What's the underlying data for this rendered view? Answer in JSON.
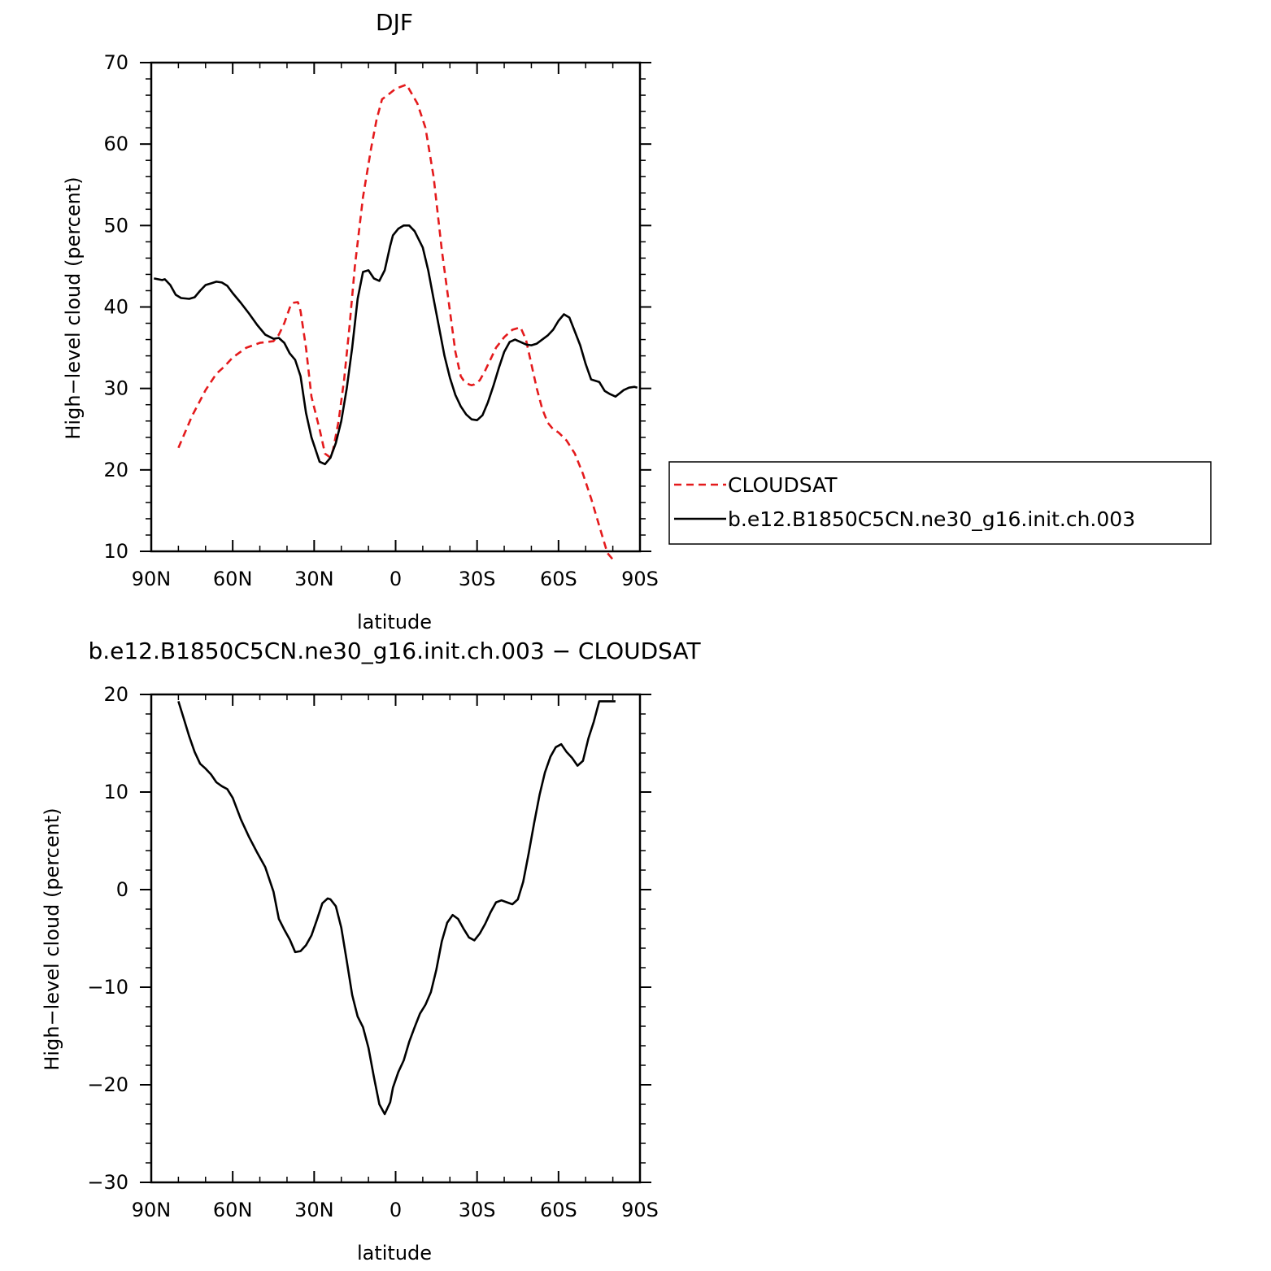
{
  "chart_data": [
    {
      "type": "line",
      "title": "DJF",
      "xlabel": "latitude",
      "ylabel": "High−level cloud (percent)",
      "x_unit": "latitude (degrees; positive = N, negative = S)",
      "xlim": [
        90,
        -90
      ],
      "ylim": [
        10,
        70
      ],
      "xticks": [
        90,
        60,
        30,
        0,
        -30,
        -60,
        -90
      ],
      "xtick_labels": [
        "90N",
        "60N",
        "30N",
        "0",
        "30S",
        "60S",
        "90S"
      ],
      "yticks": [
        10,
        20,
        30,
        40,
        50,
        60,
        70
      ],
      "ytick_labels": [
        "10",
        "20",
        "30",
        "40",
        "50",
        "60",
        "70"
      ],
      "grid": false,
      "legend_position": "right",
      "series": [
        {
          "name": "CLOUDSAT",
          "color": "#e41a1c",
          "dash": "dashed",
          "x": [
            80,
            75,
            70,
            66,
            63,
            60,
            55,
            50,
            45,
            43,
            41,
            39,
            38,
            36,
            35,
            33,
            31,
            28,
            26,
            24,
            23,
            21,
            19,
            17,
            15,
            12,
            9,
            7,
            5,
            3,
            0,
            -4,
            -8,
            -11,
            -14,
            -17,
            -20,
            -22,
            -24,
            -25,
            -27,
            -28,
            -29,
            -31,
            -33,
            -37,
            -40,
            -43,
            -46,
            -48,
            -50,
            -52,
            -54,
            -56,
            -58,
            -60,
            -63,
            -66,
            -69,
            -72,
            -76,
            -78,
            -80
          ],
          "y": [
            22.7,
            26.6,
            29.8,
            31.8,
            32.7,
            33.8,
            35.0,
            35.6,
            35.8,
            36.6,
            38.0,
            39.9,
            40.5,
            40.6,
            39.5,
            35.0,
            29.0,
            25.0,
            22.0,
            21.5,
            22.5,
            26.0,
            31.0,
            37.5,
            45.0,
            53.5,
            59.5,
            63.0,
            65.5,
            66.0,
            66.8,
            67.3,
            65.0,
            62.0,
            56.0,
            47.0,
            39.5,
            34.5,
            31.5,
            31.0,
            30.5,
            30.4,
            30.5,
            31.0,
            32.2,
            35.0,
            36.3,
            37.2,
            37.5,
            36.0,
            33.0,
            30.0,
            27.5,
            25.8,
            25.0,
            24.6,
            23.6,
            22.0,
            19.5,
            16.5,
            12.0,
            9.8,
            9.0
          ]
        },
        {
          "name": "b.e12.B1850C5CN.ne30_g16.init.ch.003",
          "color": "#000000",
          "dash": "solid",
          "x": [
            89,
            86,
            85,
            83,
            81,
            79,
            76,
            74,
            72,
            70,
            68,
            66,
            64,
            62,
            60,
            57,
            54,
            51,
            48,
            45,
            43,
            41,
            39,
            37,
            35,
            33,
            31,
            28,
            26,
            24,
            22,
            20,
            18,
            16,
            14,
            12,
            10,
            8,
            6,
            4,
            2,
            1,
            -1,
            -3,
            -5,
            -7,
            -10,
            -12,
            -14,
            -16,
            -18,
            -20,
            -22,
            -24,
            -26,
            -28,
            -30,
            -32,
            -34,
            -36,
            -38,
            -40,
            -42,
            -44,
            -46,
            -48,
            -50,
            -52,
            -54,
            -56,
            -58,
            -60,
            -62,
            -64,
            -66,
            -68,
            -70,
            -72,
            -75,
            -77,
            -79,
            -81,
            -84,
            -86,
            -88,
            -89
          ],
          "y": [
            43.5,
            43.3,
            43.4,
            42.7,
            41.5,
            41.1,
            41.0,
            41.2,
            42.0,
            42.7,
            42.9,
            43.1,
            43.0,
            42.6,
            41.7,
            40.5,
            39.2,
            37.8,
            36.6,
            36.1,
            36.2,
            35.6,
            34.3,
            33.5,
            31.5,
            27.0,
            24.0,
            21.0,
            20.7,
            21.5,
            23.3,
            26.0,
            30.0,
            35.0,
            41.0,
            44.3,
            44.5,
            43.5,
            43.2,
            44.5,
            47.5,
            48.8,
            49.6,
            50.0,
            50.0,
            49.3,
            47.3,
            44.5,
            41.0,
            37.5,
            34.0,
            31.3,
            29.2,
            27.8,
            26.8,
            26.2,
            26.1,
            26.7,
            28.3,
            30.3,
            32.5,
            34.5,
            35.7,
            36.0,
            35.7,
            35.4,
            35.3,
            35.5,
            36.0,
            36.5,
            37.2,
            38.3,
            39.1,
            38.7,
            37.0,
            35.3,
            33.0,
            31.1,
            30.8,
            29.7,
            29.3,
            29.0,
            29.8,
            30.1,
            30.2,
            30.1
          ]
        }
      ]
    },
    {
      "type": "line",
      "title": "b.e12.B1850C5CN.ne30_g16.init.ch.003 − CLOUDSAT",
      "xlabel": "latitude",
      "ylabel": "High−level cloud (percent)",
      "x_unit": "latitude (degrees; positive = N, negative = S)",
      "xlim": [
        90,
        -90
      ],
      "ylim": [
        -30,
        20
      ],
      "xticks": [
        90,
        60,
        30,
        0,
        -30,
        -60,
        -90
      ],
      "xtick_labels": [
        "90N",
        "60N",
        "30N",
        "0",
        "30S",
        "60S",
        "90S"
      ],
      "yticks": [
        -30,
        -20,
        -10,
        0,
        10,
        20
      ],
      "ytick_labels": [
        "−30",
        "−20",
        "−10",
        "0",
        "10",
        "20"
      ],
      "grid": false,
      "series": [
        {
          "color": "#000000",
          "dash": "solid",
          "x": [
            80,
            78,
            76,
            74,
            72,
            70,
            68,
            66,
            64,
            62,
            60,
            57,
            54,
            51,
            48,
            45,
            43,
            41,
            39,
            37,
            35,
            33,
            31,
            29,
            27,
            25,
            24,
            22,
            20,
            18,
            16,
            14,
            12,
            10,
            8,
            6,
            4,
            2,
            1,
            -1,
            -3,
            -5,
            -7,
            -9,
            -11,
            -13,
            -15,
            -17,
            -19,
            -21,
            -23,
            -25,
            -27,
            -29,
            -31,
            -33,
            -35,
            -37,
            -39,
            -41,
            -43,
            -45,
            -47,
            -49,
            -51,
            -53,
            -55,
            -57,
            -59,
            -61,
            -63,
            -65,
            -67,
            -69,
            -71,
            -73,
            -75,
            -77,
            -79,
            -81
          ],
          "y": [
            19.3,
            17.5,
            15.7,
            14.1,
            12.9,
            12.4,
            11.8,
            11.0,
            10.6,
            10.3,
            9.4,
            7.2,
            5.4,
            3.8,
            2.3,
            -0.2,
            -3.0,
            -4.1,
            -5.1,
            -6.4,
            -6.3,
            -5.7,
            -4.7,
            -3.1,
            -1.4,
            -0.9,
            -1.0,
            -1.7,
            -3.9,
            -7.3,
            -10.8,
            -13.0,
            -14.1,
            -16.2,
            -19.2,
            -22.0,
            -23.0,
            -21.8,
            -20.3,
            -18.7,
            -17.5,
            -15.6,
            -14.1,
            -12.7,
            -11.8,
            -10.5,
            -8.2,
            -5.3,
            -3.4,
            -2.6,
            -3.0,
            -4.0,
            -4.9,
            -5.2,
            -4.5,
            -3.5,
            -2.3,
            -1.3,
            -1.1,
            -1.3,
            -1.5,
            -1.0,
            0.8,
            3.7,
            6.8,
            9.7,
            12.0,
            13.6,
            14.6,
            14.9,
            14.1,
            13.5,
            12.7,
            13.2,
            15.5,
            17.2,
            19.3,
            19.3,
            19.3,
            19.3
          ]
        }
      ]
    }
  ]
}
